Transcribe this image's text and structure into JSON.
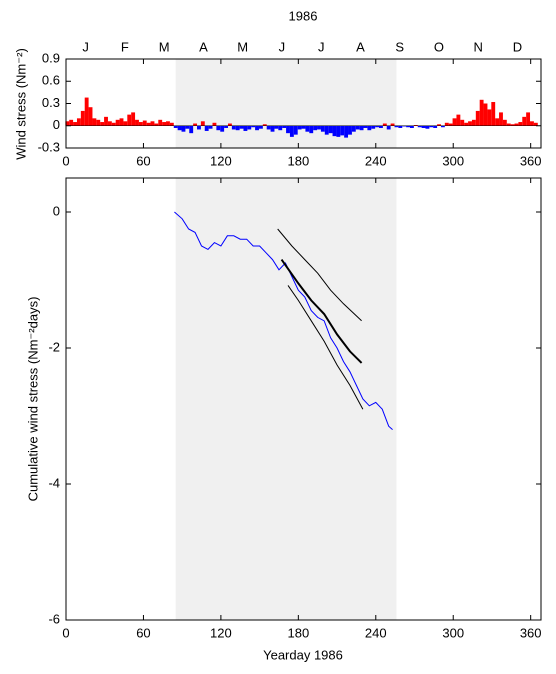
{
  "chart_data": [
    {
      "type": "bar",
      "title": "1986",
      "ylabel": "Wind stress (Nm⁻²)",
      "months": [
        "J",
        "F",
        "M",
        "A",
        "M",
        "J",
        "J",
        "A",
        "S",
        "O",
        "N",
        "D"
      ],
      "x": [
        1,
        4,
        7,
        10,
        13,
        16,
        19,
        22,
        25,
        28,
        31,
        34,
        37,
        40,
        43,
        46,
        49,
        52,
        55,
        58,
        61,
        64,
        67,
        70,
        73,
        76,
        79,
        82,
        85,
        88,
        91,
        94,
        97,
        100,
        103,
        106,
        109,
        112,
        115,
        118,
        121,
        124,
        127,
        130,
        133,
        136,
        139,
        142,
        145,
        148,
        151,
        154,
        157,
        160,
        163,
        166,
        169,
        172,
        175,
        178,
        181,
        184,
        187,
        190,
        193,
        196,
        199,
        202,
        205,
        208,
        211,
        214,
        217,
        220,
        223,
        226,
        229,
        232,
        235,
        238,
        241,
        244,
        247,
        250,
        253,
        256,
        259,
        262,
        265,
        268,
        271,
        274,
        277,
        280,
        283,
        286,
        289,
        292,
        295,
        298,
        301,
        304,
        307,
        310,
        313,
        316,
        319,
        322,
        325,
        328,
        331,
        334,
        337,
        340,
        343,
        346,
        349,
        352,
        355,
        358,
        361,
        364
      ],
      "values": [
        0.06,
        0.08,
        0.05,
        0.1,
        0.2,
        0.38,
        0.25,
        0.1,
        0.08,
        0.05,
        0.12,
        0.06,
        0.04,
        0.08,
        0.1,
        0.06,
        0.15,
        0.18,
        0.08,
        0.05,
        0.07,
        0.04,
        0.06,
        0.03,
        0.08,
        0.05,
        0.06,
        0.04,
        -0.03,
        -0.06,
        -0.08,
        -0.04,
        -0.1,
        0.03,
        -0.05,
        0.06,
        -0.07,
        -0.04,
        0.04,
        -0.06,
        -0.08,
        -0.03,
        0.03,
        -0.05,
        -0.06,
        -0.04,
        -0.07,
        -0.05,
        -0.02,
        -0.06,
        -0.04,
        0.02,
        -0.05,
        -0.08,
        -0.04,
        -0.06,
        -0.03,
        -0.1,
        -0.15,
        -0.12,
        -0.05,
        -0.04,
        -0.08,
        -0.1,
        -0.06,
        -0.05,
        -0.08,
        -0.12,
        -0.1,
        -0.14,
        -0.15,
        -0.13,
        -0.16,
        -0.12,
        -0.08,
        -0.05,
        -0.06,
        -0.03,
        -0.06,
        -0.04,
        -0.02,
        -0.03,
        0.03,
        -0.05,
        0.03,
        -0.02,
        -0.03,
        -0.01,
        -0.02,
        -0.03,
        0.01,
        -0.02,
        -0.03,
        -0.04,
        -0.02,
        -0.03,
        0.02,
        -0.02,
        0.04,
        0.03,
        0.1,
        0.15,
        0.08,
        0.04,
        0.06,
        0.08,
        0.2,
        0.35,
        0.3,
        0.22,
        0.32,
        0.1,
        0.18,
        0.08,
        0.03,
        0.02,
        0.03,
        0.05,
        0.12,
        0.18,
        0.06,
        0.04
      ],
      "pos_color": "#ff0000",
      "neg_color": "#0000ff",
      "shade": [
        85,
        256
      ],
      "xlim": [
        0,
        368
      ],
      "xticks": [
        0,
        60,
        120,
        180,
        240,
        300,
        360
      ],
      "ylim": [
        -0.3,
        0.9
      ],
      "yticks": [
        -0.3,
        0,
        0.3,
        0.6,
        0.9
      ]
    },
    {
      "type": "line",
      "xlabel": "Yearday 1986",
      "ylabel": "Cumulative wind stress (Nm⁻²days)",
      "shade": [
        85,
        256
      ],
      "xlim": [
        0,
        368
      ],
      "xticks": [
        0,
        60,
        120,
        180,
        240,
        300,
        360
      ],
      "ylim": [
        -6,
        0.5
      ],
      "yticks": [
        -6,
        -4,
        -2,
        0
      ],
      "series": [
        {
          "color": "#0000ff",
          "width": 1,
          "x": [
            84,
            90,
            95,
            100,
            105,
            110,
            115,
            120,
            125,
            130,
            135,
            140,
            145,
            150,
            155,
            160,
            165,
            170,
            175,
            180,
            185,
            190,
            195,
            200,
            205,
            210,
            215,
            220,
            225,
            230,
            235,
            240,
            245,
            250,
            253
          ],
          "values": [
            0,
            -0.1,
            -0.25,
            -0.3,
            -0.5,
            -0.55,
            -0.45,
            -0.5,
            -0.35,
            -0.35,
            -0.4,
            -0.4,
            -0.5,
            -0.5,
            -0.6,
            -0.7,
            -0.85,
            -0.75,
            -0.95,
            -1.15,
            -1.25,
            -1.45,
            -1.55,
            -1.6,
            -1.85,
            -2.0,
            -2.2,
            -2.35,
            -2.55,
            -2.75,
            -2.85,
            -2.8,
            -2.9,
            -3.15,
            -3.2
          ]
        },
        {
          "color": "#000000",
          "width": 2,
          "x": [
            167,
            180,
            190,
            200,
            210,
            220,
            229
          ],
          "values": [
            -0.7,
            -1.05,
            -1.3,
            -1.5,
            -1.8,
            -2.05,
            -2.22
          ]
        },
        {
          "color": "#000000",
          "width": 1,
          "x": [
            164,
            175,
            185,
            195,
            205,
            215,
            229
          ],
          "values": [
            -0.25,
            -0.5,
            -0.7,
            -0.9,
            -1.15,
            -1.35,
            -1.6
          ]
        },
        {
          "color": "#000000",
          "width": 1,
          "x": [
            172,
            180,
            190,
            200,
            210,
            220,
            230
          ],
          "values": [
            -1.08,
            -1.3,
            -1.6,
            -1.9,
            -2.25,
            -2.55,
            -2.9
          ]
        }
      ]
    }
  ]
}
